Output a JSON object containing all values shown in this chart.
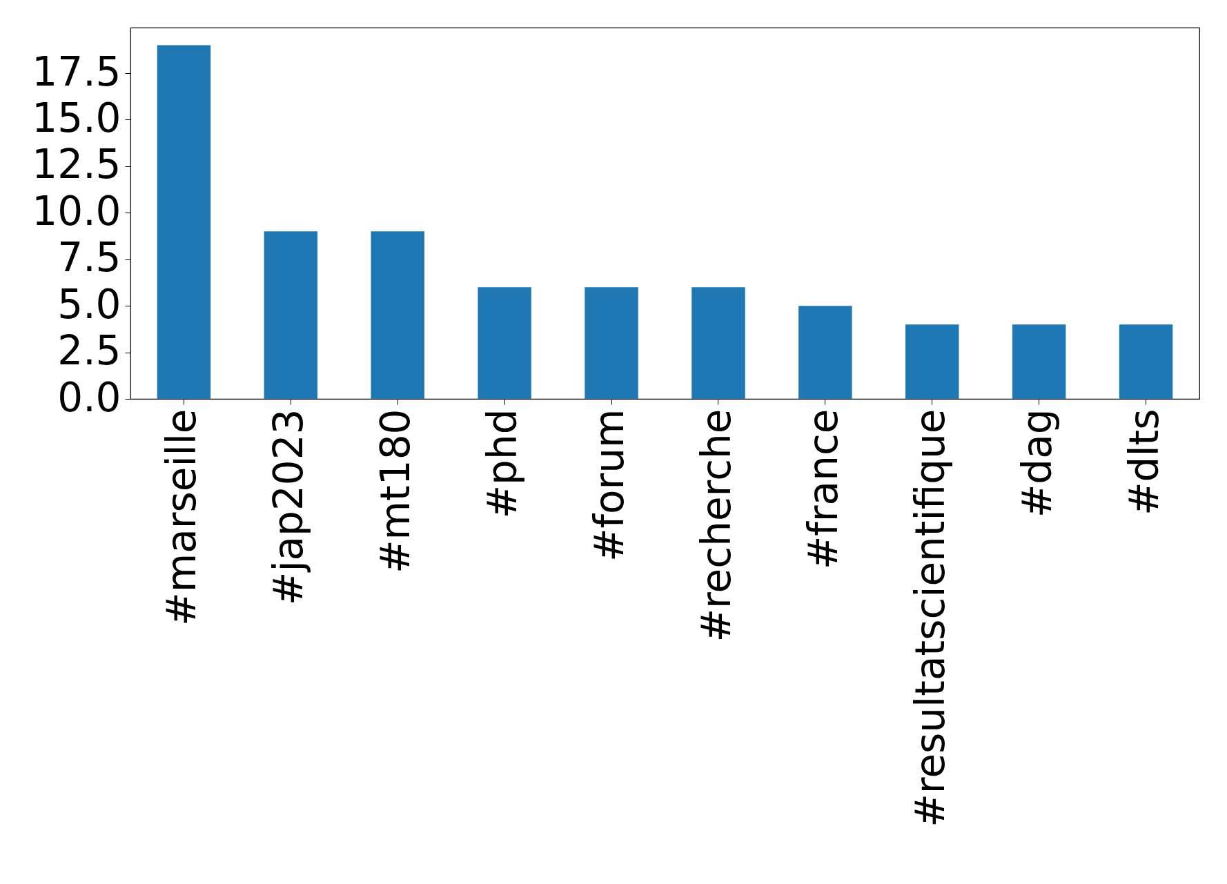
{
  "chart_data": {
    "type": "bar",
    "categories": [
      "#marseille",
      "#jap2023",
      "#mt180",
      "#phd",
      "#forum",
      "#recherche",
      "#france",
      "#resultatscientifique",
      "#dag",
      "#dlts"
    ],
    "values": [
      19,
      9,
      9,
      6,
      6,
      6,
      5,
      4,
      4,
      4
    ],
    "color": "#1f77b4",
    "ylim": [
      0,
      19.95
    ],
    "yticks": [
      {
        "value": 0,
        "label": "0.0"
      },
      2.5,
      {
        "value": 5,
        "label": "5.0"
      },
      7.5,
      {
        "value": 10,
        "label": "10.0"
      },
      12.5,
      {
        "value": 15,
        "label": "15.0"
      },
      17.5
    ],
    "grid": false
  }
}
